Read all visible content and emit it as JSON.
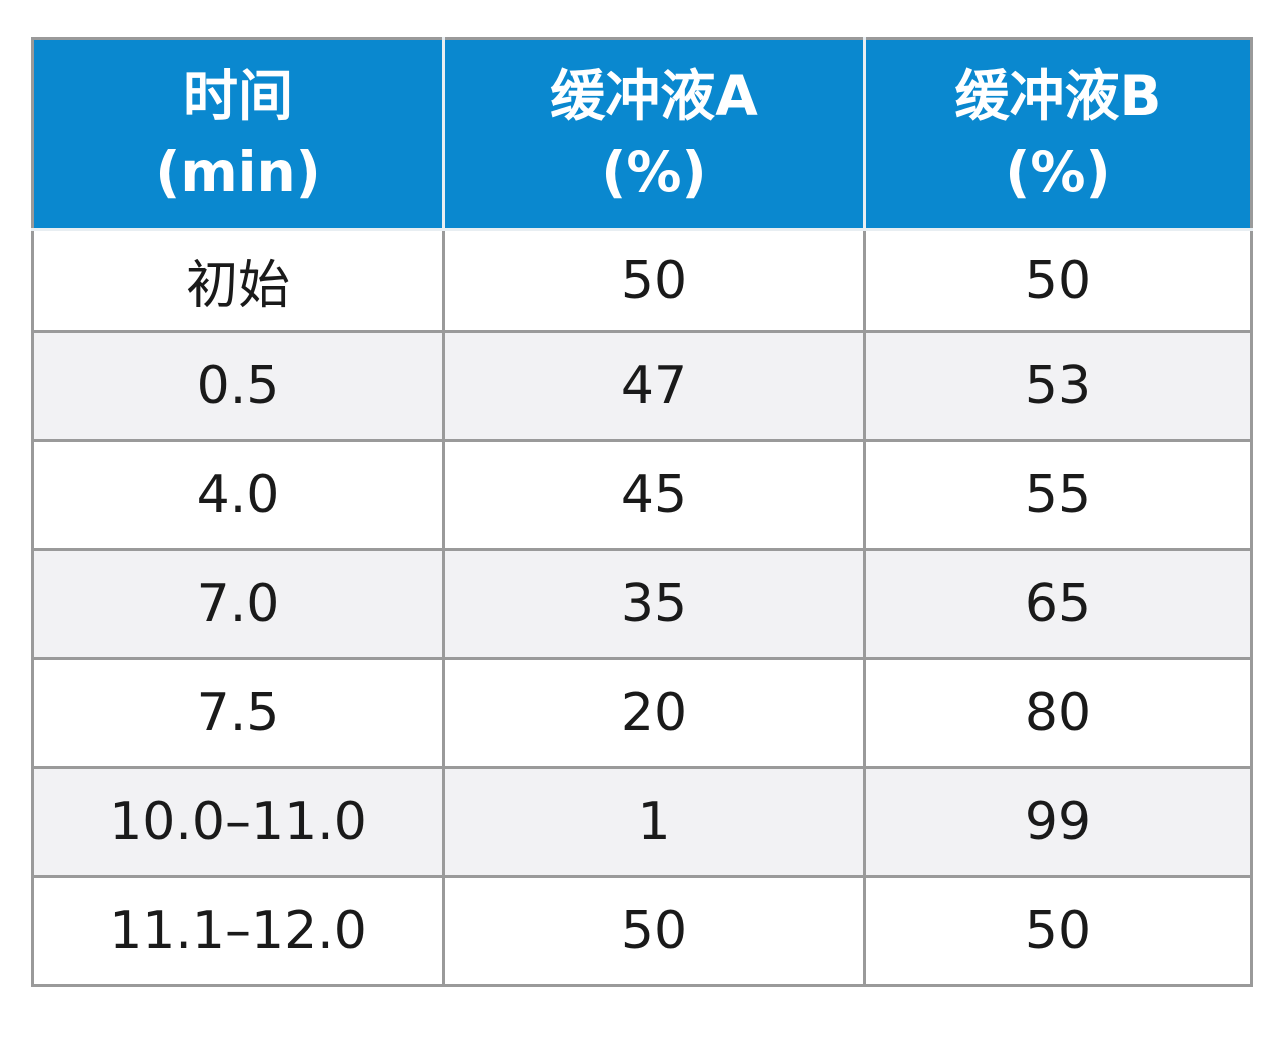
{
  "header": [
    {
      "line1": "时间",
      "line2": "(min)"
    },
    {
      "line1": "缓冲液A",
      "line2": "(%)"
    },
    {
      "line1": "缓冲液B",
      "line2": "(%)"
    }
  ],
  "rows": [
    {
      "time": "初始",
      "a": "50",
      "b": "50"
    },
    {
      "time": "0.5",
      "a": "47",
      "b": "53"
    },
    {
      "time": "4.0",
      "a": "45",
      "b": "55"
    },
    {
      "time": "7.0",
      "a": "35",
      "b": "65"
    },
    {
      "time": "7.5",
      "a": "20",
      "b": "80"
    },
    {
      "time": "10.0–11.0",
      "a": "1",
      "b": "99"
    },
    {
      "time": "11.1–12.0",
      "a": "50",
      "b": "50"
    }
  ],
  "colors": {
    "header_bg": "#0a88cf",
    "header_text": "#ffffff",
    "stripe_bg": "#f2f2f4",
    "border": "#9a9a9a"
  }
}
